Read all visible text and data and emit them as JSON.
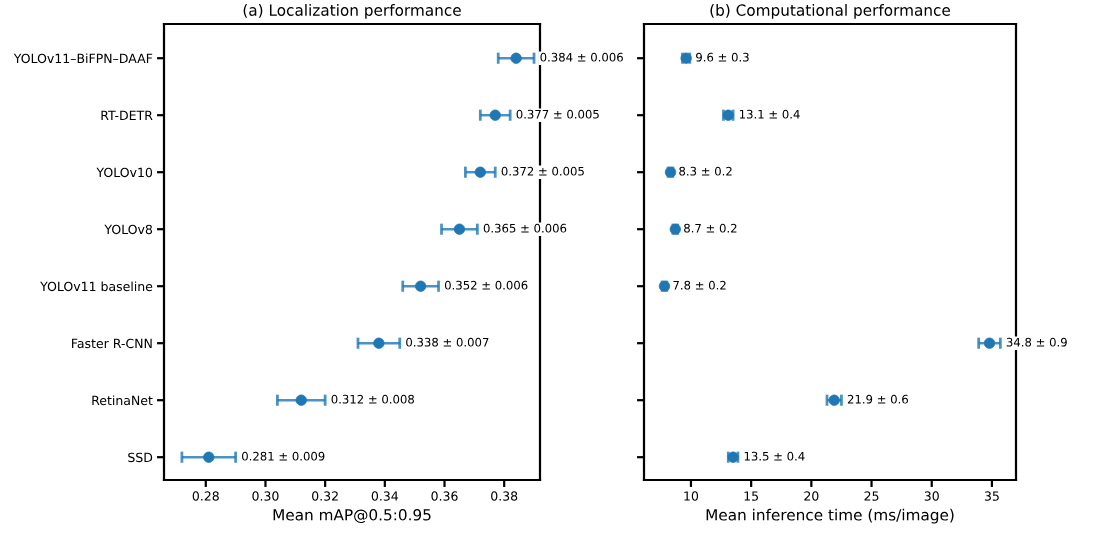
{
  "chart_data": [
    {
      "type": "scatter",
      "orientation": "horizontal",
      "title": "(a) Localization performance",
      "xlabel": "Mean mAP@0.5:0.95",
      "categories": [
        "YOLOv11–BiFPN–DAAF",
        "RT-DETR",
        "YOLOv10",
        "YOLOv8",
        "YOLOv11 baseline",
        "Faster R-CNN",
        "RetinaNet",
        "SSD"
      ],
      "series": [
        {
          "color": "#1f77b4",
          "values": [
            0.384,
            0.377,
            0.372,
            0.365,
            0.352,
            0.338,
            0.312,
            0.281
          ],
          "errors": [
            0.006,
            0.005,
            0.005,
            0.006,
            0.006,
            0.007,
            0.008,
            0.009
          ],
          "value_labels": [
            "0.384 ± 0.006",
            "0.377 ± 0.005",
            "0.372 ± 0.005",
            "0.365 ± 0.006",
            "0.352 ± 0.006",
            "0.338 ± 0.007",
            "0.312 ± 0.008",
            "0.281 ± 0.009"
          ]
        }
      ],
      "xlim": [
        0.266,
        0.392
      ],
      "xticks": [
        {
          "value": 0.28,
          "label": "0.28"
        },
        {
          "value": 0.3,
          "label": "0.30"
        },
        {
          "value": 0.32,
          "label": "0.32"
        },
        {
          "value": 0.34,
          "label": "0.34"
        },
        {
          "value": 0.36,
          "label": "0.36"
        },
        {
          "value": 0.38,
          "label": "0.38"
        }
      ],
      "marker": "circle",
      "grid": false,
      "legend": false
    },
    {
      "type": "scatter",
      "orientation": "horizontal",
      "title": "(b) Computational performance",
      "xlabel": "Mean inference time (ms/image)",
      "categories": [
        null,
        null,
        null,
        null,
        null,
        null,
        null,
        null
      ],
      "series": [
        {
          "color": "#1f77b4",
          "values": [
            9.6,
            13.1,
            8.3,
            8.7,
            7.8,
            34.8,
            21.9,
            13.5
          ],
          "errors": [
            0.3,
            0.4,
            0.2,
            0.2,
            0.2,
            0.9,
            0.6,
            0.4
          ],
          "value_labels": [
            "9.6 ± 0.3",
            "13.1 ± 0.4",
            "8.3 ± 0.2",
            "8.7 ± 0.2",
            "7.8 ± 0.2",
            "34.8 ± 0.9",
            "21.9 ± 0.6",
            "13.5 ± 0.4"
          ]
        }
      ],
      "xlim": [
        6.1,
        37
      ],
      "xticks": [
        10,
        15,
        20,
        25,
        30,
        35
      ],
      "marker": "circle",
      "tick_labels": "x",
      "grid": false,
      "legend": false
    }
  ]
}
